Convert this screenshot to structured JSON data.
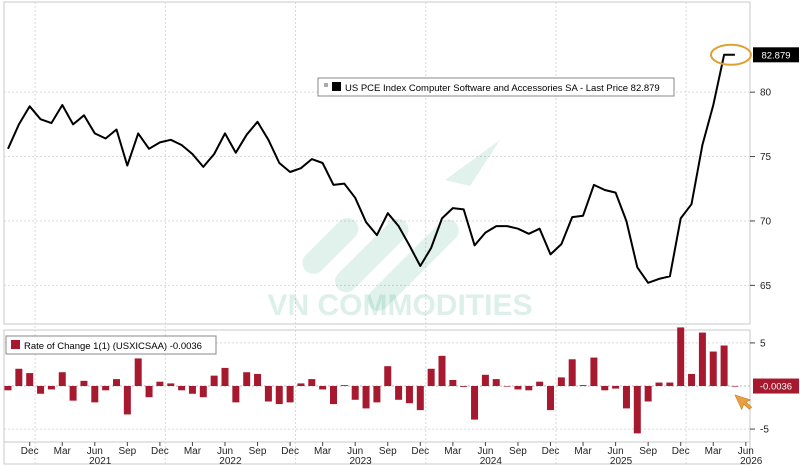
{
  "colors": {
    "price_line": "#000000",
    "roc_bar": "#a6192e",
    "grid": "#d9d9d9",
    "highlight_ring": "#e0a030",
    "watermark": "#2fa77a",
    "last_tag_top_bg": "#000000",
    "last_tag_bottom_bg": "#a6192e"
  },
  "watermark": {
    "text": "VN COMMODITIES"
  },
  "chart_data": [
    {
      "type": "line",
      "legend": "US PCE Index Computer Software and Accessories SA - Last Price 82.879",
      "legend_position": "top-right",
      "grid": true,
      "y_ticks": [
        "65",
        "70",
        "75",
        "80"
      ],
      "ylim": [
        62,
        87
      ],
      "last_value_label": "82.879",
      "x_month_labels": [
        "Dec",
        "Mar",
        "Jun",
        "Sep",
        "Dec",
        "Mar",
        "Jun",
        "Sep",
        "Dec",
        "Mar",
        "Jun",
        "Sep",
        "Dec",
        "Mar",
        "Jun",
        "Sep",
        "Dec",
        "Mar",
        "Jun",
        "Sep",
        "Dec",
        "Mar",
        "Jun"
      ],
      "x_year_labels": [
        "2021",
        "2022",
        "2023",
        "2024",
        "2025",
        "2026"
      ],
      "x": [
        "2020-10",
        "2020-11",
        "2020-12",
        "2021-01",
        "2021-02",
        "2021-03",
        "2021-04",
        "2021-05",
        "2021-06",
        "2021-07",
        "2021-08",
        "2021-09",
        "2021-10",
        "2021-11",
        "2021-12",
        "2022-01",
        "2022-02",
        "2022-03",
        "2022-04",
        "2022-05",
        "2022-06",
        "2022-07",
        "2022-08",
        "2022-09",
        "2022-10",
        "2022-11",
        "2022-12",
        "2023-01",
        "2023-02",
        "2023-03",
        "2023-04",
        "2023-05",
        "2023-06",
        "2023-07",
        "2023-08",
        "2023-09",
        "2023-10",
        "2023-11",
        "2023-12",
        "2024-01",
        "2024-02",
        "2024-03",
        "2024-04",
        "2024-05",
        "2024-06",
        "2024-07",
        "2024-08",
        "2024-09",
        "2024-10",
        "2024-11",
        "2024-12",
        "2025-01",
        "2025-02",
        "2025-03",
        "2025-04",
        "2025-05",
        "2025-06",
        "2025-07",
        "2025-08",
        "2025-09",
        "2025-10",
        "2025-11",
        "2025-12",
        "2026-01",
        "2026-02",
        "2026-03",
        "2026-04",
        "2026-05"
      ],
      "values": [
        75.6,
        77.5,
        78.9,
        77.9,
        77.6,
        79.0,
        77.5,
        78.2,
        76.8,
        76.4,
        77.1,
        74.3,
        76.8,
        75.6,
        76.1,
        76.3,
        75.9,
        75.2,
        74.2,
        75.2,
        76.8,
        75.3,
        76.7,
        77.7,
        76.3,
        74.5,
        73.8,
        74.1,
        74.8,
        74.5,
        72.8,
        72.9,
        71.8,
        69.9,
        68.9,
        70.6,
        69.6,
        68.1,
        66.5,
        67.9,
        70.2,
        71.0,
        70.9,
        68.1,
        69.1,
        69.6,
        69.6,
        69.4,
        69.0,
        69.4,
        67.4,
        68.2,
        70.3,
        70.4,
        72.8,
        72.4,
        72.2,
        70.0,
        66.4,
        65.2,
        65.5,
        65.7,
        70.2,
        71.3,
        75.9,
        79.0,
        82.9,
        82.9
      ]
    },
    {
      "type": "bar",
      "legend": "Rate of Change 1(1) (USXICSAA) -0.0036",
      "legend_position": "top-left",
      "grid": true,
      "y_ticks": [
        "5",
        "-5"
      ],
      "ylim": [
        -6.5,
        6.5
      ],
      "last_value_label": "-0.0036",
      "x": [
        "2020-10",
        "2020-11",
        "2020-12",
        "2021-01",
        "2021-02",
        "2021-03",
        "2021-04",
        "2021-05",
        "2021-06",
        "2021-07",
        "2021-08",
        "2021-09",
        "2021-10",
        "2021-11",
        "2021-12",
        "2022-01",
        "2022-02",
        "2022-03",
        "2022-04",
        "2022-05",
        "2022-06",
        "2022-07",
        "2022-08",
        "2022-09",
        "2022-10",
        "2022-11",
        "2022-12",
        "2023-01",
        "2023-02",
        "2023-03",
        "2023-04",
        "2023-05",
        "2023-06",
        "2023-07",
        "2023-08",
        "2023-09",
        "2023-10",
        "2023-11",
        "2023-12",
        "2024-01",
        "2024-02",
        "2024-03",
        "2024-04",
        "2024-05",
        "2024-06",
        "2024-07",
        "2024-08",
        "2024-09",
        "2024-10",
        "2024-11",
        "2024-12",
        "2025-01",
        "2025-02",
        "2025-03",
        "2025-04",
        "2025-05",
        "2025-06",
        "2025-07",
        "2025-08",
        "2025-09",
        "2025-10",
        "2025-11",
        "2025-12",
        "2026-01",
        "2026-02",
        "2026-03",
        "2026-04",
        "2026-05"
      ],
      "values": [
        -0.5,
        2.0,
        1.5,
        -0.9,
        -0.4,
        1.6,
        -1.7,
        0.6,
        -1.9,
        -0.5,
        0.8,
        -3.3,
        3.2,
        -1.3,
        0.5,
        0.3,
        -0.5,
        -0.9,
        -1.3,
        1.2,
        2.1,
        -1.9,
        1.6,
        1.4,
        -1.8,
        -2.1,
        -1.9,
        0.3,
        0.8,
        -0.4,
        -2.1,
        0.1,
        -1.6,
        -2.6,
        -1.9,
        2.3,
        -1.6,
        -2.0,
        -2.8,
        2.0,
        3.5,
        0.7,
        -0.1,
        -3.9,
        1.3,
        0.8,
        0.0,
        -0.4,
        -0.5,
        0.5,
        -2.8,
        1.0,
        3.1,
        0.1,
        3.3,
        -0.5,
        -0.3,
        -2.6,
        -5.5,
        -1.8,
        0.4,
        0.4,
        6.8,
        1.4,
        6.2,
        4.0,
        4.7,
        -0.0036
      ]
    }
  ]
}
